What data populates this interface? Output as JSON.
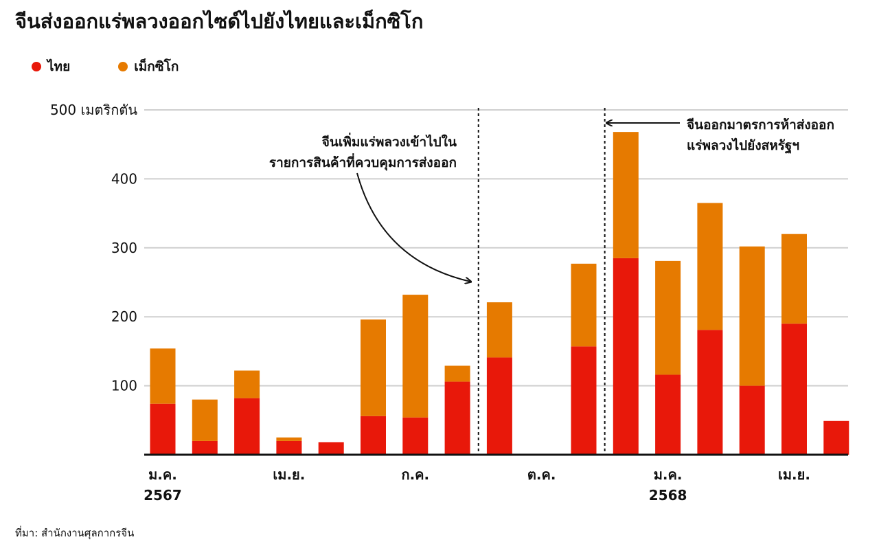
{
  "title": "จีนส่งออกแร่พลวงออกไซด์ไปยังไทยและเม็กซิโก",
  "source": "ที่มา: สำนักงานศุลกากรจีน",
  "colors": {
    "thailand": "#e8180a",
    "mexico": "#e67a00",
    "grid": "#cfcfcf"
  },
  "chart_data": {
    "type": "bar",
    "stacked": true,
    "ylim": [
      0,
      500
    ],
    "yticks": [
      100,
      200,
      300,
      400,
      500
    ],
    "ytick_labels": [
      "100",
      "200",
      "300",
      "400",
      "500 เมตริกตัน"
    ],
    "grid": true,
    "legend": "top-left",
    "series": [
      {
        "name": "ไทย",
        "values": [
          74,
          20,
          82,
          20,
          18,
          56,
          54,
          106,
          141,
          0,
          157,
          285,
          116,
          181,
          100,
          190,
          49
        ]
      },
      {
        "name": "เม็กซิโก",
        "values": [
          80,
          60,
          40,
          5,
          0,
          140,
          178,
          23,
          80,
          0,
          120,
          183,
          165,
          184,
          202,
          130,
          0
        ]
      }
    ],
    "xtick_labels": [
      {
        "index": 0,
        "lines": [
          "ม.ค.",
          "2567"
        ]
      },
      {
        "index": 3,
        "lines": [
          "เม.ย."
        ]
      },
      {
        "index": 6,
        "lines": [
          "ก.ค."
        ]
      },
      {
        "index": 9,
        "lines": [
          "ต.ค."
        ]
      },
      {
        "index": 12,
        "lines": [
          "ม.ค.",
          "2568"
        ]
      },
      {
        "index": 15,
        "lines": [
          "เม.ย."
        ]
      }
    ],
    "annotations": [
      {
        "after_index": 7,
        "lines": [
          "จีนเพิ่มแร่พลวงเข้าไปใน",
          "รายการสินค้าที่ควบคุมการส่งออก"
        ]
      },
      {
        "after_index": 10,
        "lines": [
          "จีนออกมาตรการห้าส่งออก",
          "แร่พลวงไปยังสหรัฐฯ"
        ]
      }
    ]
  }
}
